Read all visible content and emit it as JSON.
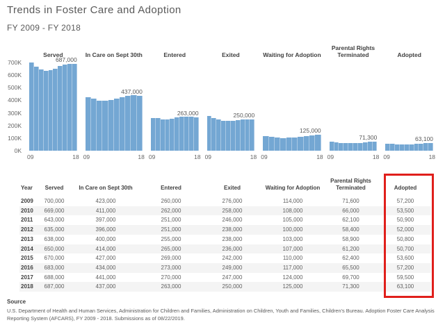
{
  "header": {
    "title": "Trends in Foster Care and Adoption",
    "subtitle": "FY 2009 - FY 2018"
  },
  "chart_data": {
    "type": "bar",
    "layout": "small-multiples",
    "x": [
      "2009",
      "2010",
      "2011",
      "2012",
      "2013",
      "2014",
      "2015",
      "2016",
      "2017",
      "2018"
    ],
    "x_axis_end_labels": [
      "09",
      "18"
    ],
    "y_ticks": [
      "700K",
      "600K",
      "500K",
      "400K",
      "300K",
      "200K",
      "100K",
      "0K"
    ],
    "ylim": [
      0,
      700000
    ],
    "grid": false,
    "series": [
      {
        "name_lines": [
          "Served"
        ],
        "values": [
          700000,
          669000,
          643000,
          635000,
          638000,
          650000,
          670000,
          683000,
          688000,
          687000
        ],
        "last_label": "687,000"
      },
      {
        "name_lines": [
          "In Care on Sept 30th"
        ],
        "values": [
          423000,
          411000,
          397000,
          396000,
          400000,
          414000,
          427000,
          434000,
          441000,
          437000
        ],
        "last_label": "437,000"
      },
      {
        "name_lines": [
          "Entered"
        ],
        "values": [
          260000,
          262000,
          251000,
          251000,
          255000,
          265000,
          269000,
          273000,
          270000,
          263000
        ],
        "last_label": "263,000"
      },
      {
        "name_lines": [
          "Exited"
        ],
        "values": [
          276000,
          258000,
          246000,
          238000,
          238000,
          236000,
          242000,
          249000,
          247000,
          250000
        ],
        "last_label": "250,000"
      },
      {
        "name_lines": [
          "Waiting for Adoption"
        ],
        "values": [
          114000,
          108000,
          105000,
          100000,
          103000,
          107000,
          110000,
          117000,
          124000,
          125000
        ],
        "last_label": "125,000"
      },
      {
        "name_lines": [
          "Parental Rights",
          "Terminated"
        ],
        "values": [
          71600,
          66000,
          62100,
          58400,
          58900,
          61200,
          62400,
          65500,
          69700,
          71300
        ],
        "last_label": "71,300"
      },
      {
        "name_lines": [
          "Adopted"
        ],
        "values": [
          57200,
          53500,
          50900,
          52000,
          50800,
          50700,
          53600,
          57200,
          59500,
          63100
        ],
        "last_label": "63,100"
      }
    ]
  },
  "table": {
    "headers": [
      {
        "lines": [
          "Year"
        ]
      },
      {
        "lines": [
          "Served"
        ]
      },
      {
        "lines": [
          "In Care on Sept 30th"
        ]
      },
      {
        "lines": [
          "Entered"
        ]
      },
      {
        "lines": [
          "Exited"
        ]
      },
      {
        "lines": [
          "Waiting for Adoption"
        ]
      },
      {
        "lines": [
          "Parental Rights",
          "Terminated"
        ]
      },
      {
        "lines": [
          "Adopted"
        ]
      }
    ],
    "rows": [
      [
        "2009",
        "700,000",
        "423,000",
        "260,000",
        "276,000",
        "114,000",
        "71,600",
        "57,200"
      ],
      [
        "2010",
        "669,000",
        "411,000",
        "262,000",
        "258,000",
        "108,000",
        "66,000",
        "53,500"
      ],
      [
        "2011",
        "643,000",
        "397,000",
        "251,000",
        "246,000",
        "105,000",
        "62,100",
        "50,900"
      ],
      [
        "2012",
        "635,000",
        "396,000",
        "251,000",
        "238,000",
        "100,000",
        "58,400",
        "52,000"
      ],
      [
        "2013",
        "638,000",
        "400,000",
        "255,000",
        "238,000",
        "103,000",
        "58,900",
        "50,800"
      ],
      [
        "2014",
        "650,000",
        "414,000",
        "265,000",
        "236,000",
        "107,000",
        "61,200",
        "50,700"
      ],
      [
        "2015",
        "670,000",
        "427,000",
        "269,000",
        "242,000",
        "110,000",
        "62,400",
        "53,600"
      ],
      [
        "2016",
        "683,000",
        "434,000",
        "273,000",
        "249,000",
        "117,000",
        "65,500",
        "57,200"
      ],
      [
        "2017",
        "688,000",
        "441,000",
        "270,000",
        "247,000",
        "124,000",
        "69,700",
        "59,500"
      ],
      [
        "2018",
        "687,000",
        "437,000",
        "263,000",
        "250,000",
        "125,000",
        "71,300",
        "63,100"
      ]
    ]
  },
  "annotation": {
    "target": "Adopted column",
    "color": "#e01f1b"
  },
  "colors": {
    "bar": "#74A7D3",
    "stripe": "#f4f4f4"
  },
  "source": {
    "label": "Source",
    "text": "U.S. Department of Health and Human Services, Administration for Children and Families, Administration on Children, Youth and Families, Children's Bureau. Adoption Foster Care Analysis Reporting System (AFCARS), FY 2009 - 2018. Submissions as of 08/22/2019."
  }
}
